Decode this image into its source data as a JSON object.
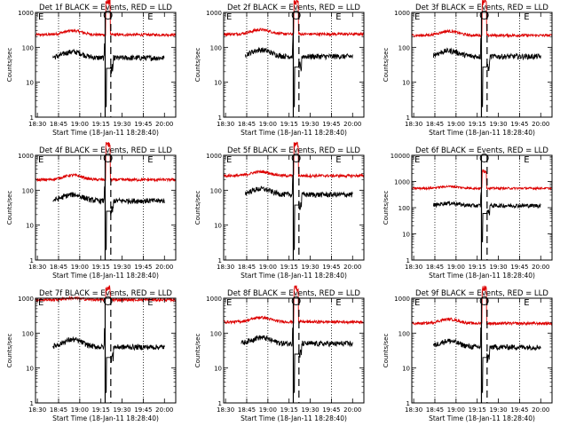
{
  "chart_data": [
    {
      "type": "line",
      "title": "Det 1f BLACK = Events, RED = LLD",
      "xlabel": "Start Time (18-Jan-11 18:28:40)",
      "ylabel": "Counts/sec",
      "y_scale": "log",
      "ylim": [
        1,
        1000
      ],
      "y_ticks": [
        1,
        10,
        100,
        1000
      ],
      "y_tick_labels": [
        "1",
        "10",
        "100",
        "1000"
      ],
      "x_tick_labels": [
        "18:30",
        "18:45",
        "19:00",
        "19:15",
        "19:30",
        "19:45",
        "20:00"
      ],
      "xlim": [
        "18:28:40",
        "20:08:00"
      ],
      "grid": "dotted vertical lines at 18:45, 19:00, 19:45",
      "markers_vertical": {
        "solid": "19:18",
        "dashed": "19:22"
      },
      "corner_labels": [
        "E",
        "E"
      ],
      "peak_marker": "circle at 19:20",
      "series": [
        {
          "name": "RED = LLD",
          "color": "#dd0000",
          "x_range": [
            "18:29",
            "20:08"
          ],
          "baseline": 230,
          "bump": 300,
          "peak": 2000
        },
        {
          "name": "BLACK = Events",
          "color": "#000000",
          "x_range": [
            "18:41",
            "20:00"
          ],
          "baseline": 50,
          "bump": 75,
          "dip": 2
        }
      ]
    },
    {
      "type": "line",
      "title": "Det 2f BLACK = Events, RED = LLD",
      "xlabel": "Start Time (18-Jan-11 18:28:40)",
      "ylabel": "Counts/sec",
      "y_scale": "log",
      "ylim": [
        1,
        1000
      ],
      "y_ticks": [
        1,
        10,
        100,
        1000
      ],
      "y_tick_labels": [
        "1",
        "10",
        "100",
        "1000"
      ],
      "x_tick_labels": [
        "18:30",
        "18:45",
        "19:00",
        "19:15",
        "19:30",
        "19:45",
        "20:00"
      ],
      "xlim": [
        "18:28:40",
        "20:08:00"
      ],
      "grid": "dotted vertical lines at 18:45, 19:00, 19:45",
      "markers_vertical": {
        "solid": "19:18",
        "dashed": "19:22"
      },
      "corner_labels": [
        "E",
        "E"
      ],
      "peak_marker": "circle at 19:20",
      "series": [
        {
          "name": "RED = LLD",
          "color": "#dd0000",
          "x_range": [
            "18:29",
            "20:08"
          ],
          "baseline": 240,
          "bump": 320,
          "peak": 2000
        },
        {
          "name": "BLACK = Events",
          "color": "#000000",
          "x_range": [
            "18:44",
            "20:00"
          ],
          "baseline": 55,
          "bump": 85,
          "dip": 2
        }
      ]
    },
    {
      "type": "line",
      "title": "Det 3f BLACK = Events, RED = LLD",
      "xlabel": "Start Time (18-Jan-11 18:28:40)",
      "ylabel": "Counts/sec",
      "y_scale": "log",
      "ylim": [
        1,
        1000
      ],
      "y_ticks": [
        1,
        10,
        100,
        1000
      ],
      "y_tick_labels": [
        "1",
        "10",
        "100",
        "1000"
      ],
      "x_tick_labels": [
        "18:30",
        "18:45",
        "19:00",
        "19:15",
        "19:30",
        "19:45",
        "20:00"
      ],
      "xlim": [
        "18:28:40",
        "20:08:00"
      ],
      "grid": "dotted vertical lines at 18:45, 19:00, 19:45",
      "markers_vertical": {
        "solid": "19:18",
        "dashed": "19:22"
      },
      "corner_labels": [
        "E",
        "E"
      ],
      "peak_marker": "circle at 19:20",
      "series": [
        {
          "name": "RED = LLD",
          "color": "#dd0000",
          "x_range": [
            "18:29",
            "20:08"
          ],
          "baseline": 220,
          "bump": 290,
          "peak": 2000
        },
        {
          "name": "BLACK = Events",
          "color": "#000000",
          "x_range": [
            "18:44",
            "20:00"
          ],
          "baseline": 55,
          "bump": 80,
          "dip": 2
        }
      ]
    },
    {
      "type": "line",
      "title": "Det 4f BLACK = Events, RED = LLD",
      "xlabel": "Start Time (18-Jan-11 18:28:40)",
      "ylabel": "Counts/sec",
      "y_scale": "log",
      "ylim": [
        1,
        1000
      ],
      "y_ticks": [
        1,
        10,
        100,
        1000
      ],
      "y_tick_labels": [
        "1",
        "10",
        "100",
        "1000"
      ],
      "x_tick_labels": [
        "18:30",
        "18:45",
        "19:00",
        "19:15",
        "19:30",
        "19:45",
        "20:00"
      ],
      "xlim": [
        "18:28:40",
        "20:08:00"
      ],
      "grid": "dotted vertical lines at 18:45, 19:00, 19:45",
      "markers_vertical": {
        "solid": "19:18",
        "dashed": "19:22"
      },
      "corner_labels": [
        "E",
        "E"
      ],
      "peak_marker": "circle at 19:20",
      "series": [
        {
          "name": "RED = LLD",
          "color": "#dd0000",
          "x_range": [
            "18:29",
            "20:08"
          ],
          "baseline": 200,
          "bump": 270,
          "peak": 2000
        },
        {
          "name": "BLACK = Events",
          "color": "#000000",
          "x_range": [
            "18:41",
            "20:00"
          ],
          "baseline": 50,
          "bump": 75,
          "dip": 2
        }
      ]
    },
    {
      "type": "line",
      "title": "Det 5f BLACK = Events, RED = LLD",
      "xlabel": "Start Time (18-Jan-11 18:28:40)",
      "ylabel": "Counts/sec",
      "y_scale": "log",
      "ylim": [
        1,
        1000
      ],
      "y_ticks": [
        1,
        10,
        100,
        1000
      ],
      "y_tick_labels": [
        "1",
        "10",
        "100",
        "1000"
      ],
      "x_tick_labels": [
        "18:30",
        "18:45",
        "19:00",
        "19:15",
        "19:30",
        "19:45",
        "20:00"
      ],
      "xlim": [
        "18:28:40",
        "20:08:00"
      ],
      "grid": "dotted vertical lines at 18:45, 19:00, 19:45",
      "markers_vertical": {
        "solid": "19:18",
        "dashed": "19:22"
      },
      "corner_labels": [
        "E",
        "E"
      ],
      "peak_marker": "circle at 19:20",
      "series": [
        {
          "name": "RED = LLD",
          "color": "#dd0000",
          "x_range": [
            "18:29",
            "20:08"
          ],
          "baseline": 260,
          "bump": 340,
          "peak": 2000
        },
        {
          "name": "BLACK = Events",
          "color": "#000000",
          "x_range": [
            "18:44",
            "20:00"
          ],
          "baseline": 75,
          "bump": 110,
          "dip": 2
        }
      ]
    },
    {
      "type": "line",
      "title": "Det 6f BLACK = Events, RED = LLD",
      "xlabel": "Start Time (18-Jan-11 18:28:40)",
      "ylabel": "Counts/sec",
      "y_scale": "log",
      "ylim": [
        1,
        10000
      ],
      "y_ticks": [
        1,
        10,
        100,
        1000,
        10000
      ],
      "y_tick_labels": [
        "1",
        "10",
        "100",
        "1000",
        "10000"
      ],
      "x_tick_labels": [
        "18:30",
        "18:45",
        "19:00",
        "19:15",
        "19:30",
        "19:45",
        "20:00"
      ],
      "xlim": [
        "18:28:40",
        "20:08:00"
      ],
      "grid": "dotted vertical lines at 18:45, 19:00, 19:45",
      "markers_vertical": {
        "solid": "19:18",
        "dashed": "19:22"
      },
      "corner_labels": [
        "E",
        "E"
      ],
      "peak_marker": "circle at 19:20",
      "series": [
        {
          "name": "RED = LLD",
          "color": "#dd0000",
          "x_range": [
            "18:29",
            "20:08"
          ],
          "baseline": 550,
          "bump": 650,
          "peak": 2500
        },
        {
          "name": "BLACK = Events",
          "color": "#000000",
          "x_range": [
            "18:44",
            "20:00"
          ],
          "baseline": 120,
          "bump": 150,
          "dip": 5
        }
      ]
    },
    {
      "type": "line",
      "title": "Det 7f BLACK = Events, RED = LLD",
      "xlabel": "Start Time (18-Jan-11 18:28:40)",
      "ylabel": "Counts/sec",
      "y_scale": "log",
      "ylim": [
        1,
        1000
      ],
      "y_ticks": [
        1,
        10,
        100,
        1000
      ],
      "y_tick_labels": [
        "1",
        "10",
        "100",
        "1000"
      ],
      "x_tick_labels": [
        "18:30",
        "18:45",
        "19:00",
        "19:15",
        "19:30",
        "19:45",
        "20:00"
      ],
      "xlim": [
        "18:28:40",
        "20:08:00"
      ],
      "grid": "dotted vertical lines at 18:45, 19:00, 19:45",
      "markers_vertical": {
        "solid": "19:18",
        "dashed": "19:22"
      },
      "corner_labels": [
        "E",
        "E"
      ],
      "peak_marker": "circle at 19:20",
      "series": [
        {
          "name": "RED = LLD",
          "color": "#dd0000",
          "x_range": [
            "18:29",
            "20:08"
          ],
          "baseline": 900,
          "bump": 1000,
          "peak": 2000
        },
        {
          "name": "BLACK = Events",
          "color": "#000000",
          "x_range": [
            "18:41",
            "20:00"
          ],
          "baseline": 40,
          "bump": 65,
          "dip": 2
        }
      ]
    },
    {
      "type": "line",
      "title": "Det 8f BLACK = Events, RED = LLD",
      "xlabel": "Start Time (18-Jan-11 18:28:40)",
      "ylabel": "Counts/sec",
      "y_scale": "log",
      "ylim": [
        1,
        1000
      ],
      "y_ticks": [
        1,
        10,
        100,
        1000
      ],
      "y_tick_labels": [
        "1",
        "10",
        "100",
        "1000"
      ],
      "x_tick_labels": [
        "18:30",
        "18:45",
        "19:00",
        "19:15",
        "19:30",
        "19:45",
        "20:00"
      ],
      "xlim": [
        "18:28:40",
        "20:08:00"
      ],
      "grid": "dotted vertical lines at 18:45, 19:00, 19:45",
      "markers_vertical": {
        "solid": "19:18",
        "dashed": "19:22"
      },
      "corner_labels": [
        "E",
        "E"
      ],
      "peak_marker": "circle at 19:20",
      "series": [
        {
          "name": "RED = LLD",
          "color": "#dd0000",
          "x_range": [
            "18:29",
            "20:08"
          ],
          "baseline": 210,
          "bump": 280,
          "peak": 2000
        },
        {
          "name": "BLACK = Events",
          "color": "#000000",
          "x_range": [
            "18:41",
            "20:00"
          ],
          "baseline": 50,
          "bump": 75,
          "dip": 2
        }
      ]
    },
    {
      "type": "line",
      "title": "Det 9f BLACK = Events, RED = LLD",
      "xlabel": "Start Time (18-Jan-11 18:28:40)",
      "ylabel": "Counts/sec",
      "y_scale": "log",
      "ylim": [
        1,
        1000
      ],
      "y_ticks": [
        1,
        10,
        100,
        1000
      ],
      "y_tick_labels": [
        "1",
        "10",
        "100",
        "1000"
      ],
      "x_tick_labels": [
        "18:30",
        "18:45",
        "19:00",
        "19:15",
        "19:30",
        "19:45",
        "20:00"
      ],
      "xlim": [
        "18:28:40",
        "20:08:00"
      ],
      "grid": "dotted vertical lines at 18:45, 19:00, 19:45",
      "markers_vertical": {
        "solid": "19:18",
        "dashed": "19:22"
      },
      "corner_labels": [
        "E",
        "E"
      ],
      "peak_marker": "circle at 19:20",
      "series": [
        {
          "name": "RED = LLD",
          "color": "#dd0000",
          "x_range": [
            "18:29",
            "20:08"
          ],
          "baseline": 190,
          "bump": 250,
          "peak": 2000
        },
        {
          "name": "BLACK = Events",
          "color": "#000000",
          "x_range": [
            "18:44",
            "20:00"
          ],
          "baseline": 40,
          "bump": 60,
          "dip": 2
        }
      ]
    }
  ]
}
